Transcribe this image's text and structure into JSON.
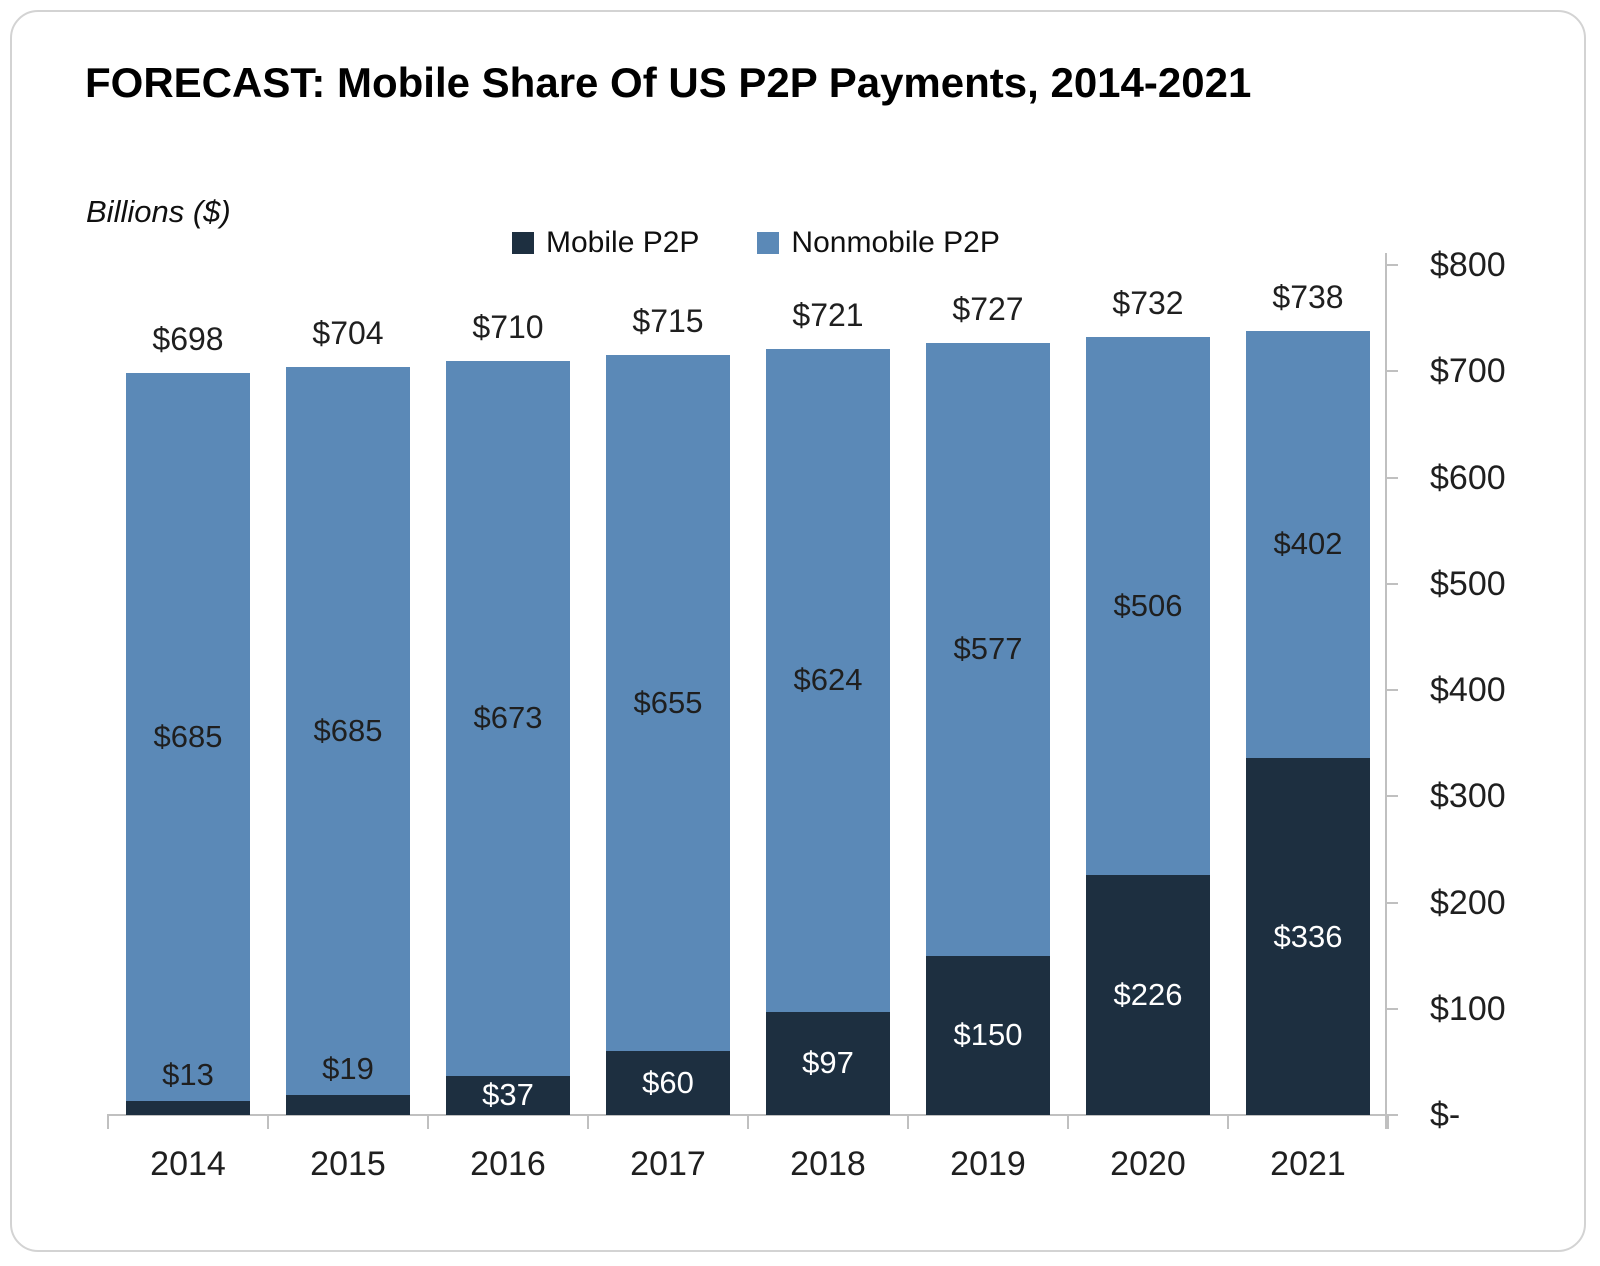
{
  "title": "FORECAST: Mobile Share Of US P2P Payments, 2014-2021",
  "subtitle": "Billions ($)",
  "legend": {
    "position": "top",
    "items": [
      {
        "label": "Mobile P2P",
        "color": "#1d2f40"
      },
      {
        "label": "Nonmobile P2P",
        "color": "#5b89b7"
      }
    ]
  },
  "colors": {
    "mobile_series": "#1d2f40",
    "nonmobile_series": "#5b89b7",
    "axis_line": "#c0c0c0",
    "text": "#1f1f1f",
    "label_on_dark": "#ffffff"
  },
  "chart_data": {
    "type": "bar",
    "stacked": true,
    "title": "FORECAST: Mobile Share Of US P2P Payments, 2014-2021",
    "subtitle": "Billions ($)",
    "categories": [
      "2014",
      "2015",
      "2016",
      "2017",
      "2018",
      "2019",
      "2020",
      "2021"
    ],
    "series": [
      {
        "name": "Mobile P2P",
        "color": "#1d2f40",
        "values": [
          13,
          19,
          37,
          60,
          97,
          150,
          226,
          336
        ],
        "labels": [
          "$13",
          "$19",
          "$37",
          "$60",
          "$97",
          "$150",
          "$226",
          "$336"
        ]
      },
      {
        "name": "Nonmobile P2P",
        "color": "#5b89b7",
        "values": [
          685,
          685,
          673,
          655,
          624,
          577,
          506,
          402
        ],
        "labels": [
          "$685",
          "$685",
          "$673",
          "$655",
          "$624",
          "$577",
          "$506",
          "$402"
        ]
      }
    ],
    "totals": {
      "values": [
        698,
        704,
        710,
        715,
        721,
        727,
        732,
        738
      ],
      "labels": [
        "$698",
        "$704",
        "$710",
        "$715",
        "$721",
        "$727",
        "$732",
        "$738"
      ]
    },
    "y_axis": {
      "position": "right",
      "ylim": [
        0,
        800
      ],
      "ticks": [
        {
          "label": "$800",
          "value": 800
        },
        {
          "label": "$700",
          "value": 700
        },
        {
          "label": "$600",
          "value": 600
        },
        {
          "label": "$500",
          "value": 500
        },
        {
          "label": "$400",
          "value": 400
        },
        {
          "label": "$300",
          "value": 300
        },
        {
          "label": "$200",
          "value": 200
        },
        {
          "label": "$100",
          "value": 100
        },
        {
          "label": "$-",
          "value": 0
        }
      ]
    },
    "grid": false
  }
}
